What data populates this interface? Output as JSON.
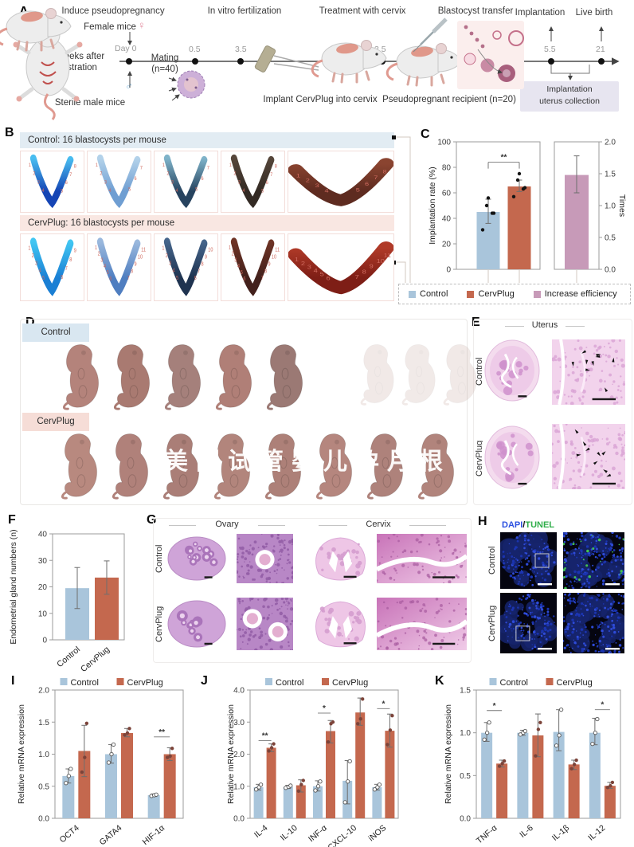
{
  "panelA": {
    "label": "A",
    "stages": {
      "s1": "Induce pseudopregnancy",
      "s2": "In vitro fertilization",
      "s3": "Treatment with cervix",
      "s4": "Blastocyst transfer",
      "s5": "Implantation",
      "s6": "Live birth"
    },
    "ticks": {
      "day0": "Day 0",
      "t05": "0.5",
      "t35a": "3.5",
      "t35b": "3.5",
      "t55": "5.5",
      "t21": "21"
    },
    "female_mice": "Female mice",
    "female_symbol": "♀",
    "male_symbol": "♂",
    "castration_l1": "2 weeks after",
    "castration_l2": "castration",
    "mating_l1": "Mating",
    "mating_l2": "(n=40)",
    "sterile_male": "Sterile male mice",
    "implant_caption": "Implant CervPlug into cervix",
    "recipient_caption": "Pseudopregnant recipient (n=20)",
    "collection_l1": "Implantation",
    "collection_l2": "uterus collection"
  },
  "panelB": {
    "label": "B",
    "control_header": "Control: 16 blastocysts per mouse",
    "cervplug_header": "CervPlug: 16 blastocysts per mouse",
    "control_tiles": [
      {
        "c1": "#1545b5",
        "c2": "#49bdf0",
        "sites": 8
      },
      {
        "c1": "#6f9ed2",
        "c2": "#b3d2ea",
        "sites": 7
      },
      {
        "c1": "#27435f",
        "c2": "#7fb3c9",
        "sites": 7
      },
      {
        "c1": "#332a24",
        "c2": "#55463a",
        "sites": 8
      },
      {
        "c1": "#5e2b20",
        "c2": "#8a4430",
        "sites": 8,
        "wide": true
      }
    ],
    "cervplug_tiles": [
      {
        "c1": "#1a7fd4",
        "c2": "#41c6f2",
        "sites": 9
      },
      {
        "c1": "#4f7ec0",
        "c2": "#9ab8dd",
        "sites": 11
      },
      {
        "c1": "#1f3350",
        "c2": "#45648a",
        "sites": 10
      },
      {
        "c1": "#43211c",
        "c2": "#6e3325",
        "sites": 11
      },
      {
        "c1": "#7e1e16",
        "c2": "#b03a28",
        "sites": 11,
        "wide": true
      }
    ]
  },
  "panelC": {
    "label": "C",
    "legend": [
      {
        "label": "Control",
        "color": "#a9c5db"
      },
      {
        "label": "CervPlug",
        "color": "#c4684e"
      },
      {
        "label": "Increase efficiency",
        "color": "#c79ab8"
      }
    ]
  },
  "panelD": {
    "label": "D",
    "control_chip": "Control",
    "cervplug_chip": "CervPlug",
    "watermark": "美国试管婴儿孕月根",
    "control_pups": [
      {
        "color": "#b4837b"
      },
      {
        "color": "#a97a71"
      },
      {
        "color": "#a5807b"
      },
      {
        "color": "#b07f77"
      },
      {
        "color": "#9b7974"
      },
      {
        "color": "#c9aba3",
        "ghost": true
      },
      {
        "color": "#cbada5",
        "ghost": true
      },
      {
        "color": "#c8a9a1",
        "ghost": true
      }
    ],
    "cervplug_pups": [
      {
        "color": "#b8897f"
      },
      {
        "color": "#b0817a"
      },
      {
        "color": "#aa7e77"
      },
      {
        "color": "#b2857c"
      },
      {
        "color": "#ad8078"
      },
      {
        "color": "#b5867e"
      },
      {
        "color": "#ae827b"
      },
      {
        "color": "#b1847c"
      }
    ]
  },
  "panelE": {
    "label": "E",
    "title": "Uterus",
    "rows": [
      "Control",
      "CervPlug"
    ]
  },
  "panelF": {
    "label": "F"
  },
  "panelG": {
    "label": "G",
    "col1": "Ovary",
    "col2": "Cervix",
    "rows": [
      "Control",
      "CervPlug"
    ]
  },
  "panelH": {
    "label": "H",
    "stain1": "DAPI",
    "sep": "/",
    "stain2": "TUNEL",
    "stain1_color": "#2b50e0",
    "stain2_color": "#2fae4a",
    "rows": [
      "Control",
      "CervPlug"
    ]
  },
  "panelI": {
    "label": "I"
  },
  "panelJ": {
    "label": "J"
  },
  "panelK": {
    "label": "K"
  },
  "chart_data": [
    {
      "id": "c-left",
      "type": "bar",
      "ylabel": "Implantation rate (%)",
      "ylim": [
        0,
        100
      ],
      "yticks": [
        "0",
        "20",
        "40",
        "60",
        "80",
        "100"
      ],
      "categories": [
        "Control",
        "CervPlug"
      ],
      "values": [
        45,
        65
      ],
      "errors": [
        [
          36,
          55
        ],
        [
          61,
          70
        ]
      ],
      "points": [
        [
          31,
          44,
          44,
          50,
          56
        ],
        [
          57,
          63,
          64,
          70,
          75
        ]
      ],
      "colors": [
        "#a9c5db",
        "#c4684e"
      ],
      "sig": [
        {
          "from": 0,
          "to": 1,
          "y": 84,
          "label": "**",
          "bracket": true
        }
      ],
      "show_xlabels": false
    },
    {
      "id": "c-right",
      "type": "bar",
      "ylabel": "Times",
      "axis_side": "right",
      "ylim": [
        0,
        2
      ],
      "yticks": [
        "0.0",
        "0.5",
        "1.0",
        "1.5",
        "2.0"
      ],
      "categories": [
        "Increase efficiency"
      ],
      "values": [
        1.48
      ],
      "errors": [
        [
          1.2,
          1.78
        ]
      ],
      "colors": [
        "#c79ab8"
      ],
      "show_xlabels": false
    },
    {
      "id": "f",
      "type": "bar",
      "ylabel": "Endometrial gland numbers (n)",
      "ylim": [
        0,
        40
      ],
      "yticks": [
        "0",
        "10",
        "20",
        "30",
        "40"
      ],
      "categories": [
        "Control",
        "CervPlug"
      ],
      "values": [
        19.5,
        23.5
      ],
      "errors": [
        [
          11.8,
          27.3
        ],
        [
          17.2,
          29.8
        ]
      ],
      "colors": [
        "#a9c5db",
        "#c4684e"
      ],
      "show_xlabels": true
    },
    {
      "id": "i",
      "type": "bar",
      "ylabel": "Relative mRNA expression",
      "ylim": [
        0,
        2
      ],
      "yticks": [
        "0.0",
        "0.5",
        "1.0",
        "1.5",
        "2.0"
      ],
      "categories": [
        "OCT4",
        "GATA4",
        "HIF-1α"
      ],
      "legend": [
        "Control",
        "CervPlug"
      ],
      "legend_colors": [
        "#a9c5db",
        "#c4684e"
      ],
      "series": [
        {
          "name": "Control",
          "color": "#a9c5db",
          "values": [
            0.66,
            1.0,
            0.36
          ],
          "errors": [
            [
              0.55,
              0.77
            ],
            [
              0.86,
              1.15
            ],
            [
              0.34,
              0.38
            ]
          ],
          "points": [
            [
              0.55,
              0.66,
              0.77
            ],
            [
              0.87,
              1.0,
              1.15
            ],
            [
              0.35,
              0.36,
              0.37
            ]
          ]
        },
        {
          "name": "CervPlug",
          "color": "#c4684e",
          "values": [
            1.05,
            1.33,
            1.0
          ],
          "errors": [
            [
              0.65,
              1.45
            ],
            [
              1.27,
              1.4
            ],
            [
              0.9,
              1.1
            ]
          ],
          "points": [
            [
              0.72,
              0.95,
              1.48
            ],
            [
              1.3,
              1.33,
              1.4
            ],
            [
              0.95,
              0.97,
              1.09
            ]
          ]
        }
      ],
      "sig": [
        {
          "category": 2,
          "y": 1.27,
          "label": "**"
        }
      ],
      "show_xlabels": true
    },
    {
      "id": "j",
      "type": "bar",
      "ylabel": "Relative mRNA expression",
      "ylim": [
        0,
        4
      ],
      "yticks": [
        "0.0",
        "1.0",
        "2.0",
        "3.0",
        "4.0"
      ],
      "categories": [
        "IL-4",
        "IL-10",
        "INF-α",
        "CXCL-10",
        "iNOS"
      ],
      "legend": [
        "Control",
        "CervPlug"
      ],
      "legend_colors": [
        "#a9c5db",
        "#c4684e"
      ],
      "series": [
        {
          "name": "Control",
          "color": "#a9c5db",
          "values": [
            0.97,
            0.98,
            1.0,
            1.17,
            0.97
          ],
          "errors": [
            [
              0.88,
              1.06
            ],
            [
              0.93,
              1.03
            ],
            [
              0.85,
              1.17
            ],
            [
              0.45,
              1.8
            ],
            [
              0.88,
              1.06
            ]
          ],
          "points": [
            [
              0.9,
              0.97,
              1.05
            ],
            [
              0.95,
              0.98,
              1.02
            ],
            [
              0.87,
              1.0,
              1.15
            ],
            [
              0.5,
              1.15,
              1.78
            ],
            [
              0.9,
              0.97,
              1.05
            ]
          ]
        },
        {
          "name": "CervPlug",
          "color": "#c4684e",
          "values": [
            2.2,
            1.03,
            2.72,
            3.3,
            2.73
          ],
          "errors": [
            [
              2.08,
              2.32
            ],
            [
              0.82,
              1.2
            ],
            [
              2.35,
              3.05
            ],
            [
              2.9,
              3.75
            ],
            [
              2.22,
              3.25
            ]
          ],
          "points": [
            [
              2.1,
              2.2,
              2.32
            ],
            [
              0.85,
              1.05,
              1.18
            ],
            [
              2.38,
              2.95,
              3.0
            ],
            [
              2.95,
              3.1,
              3.72
            ],
            [
              2.3,
              2.75,
              3.2
            ]
          ]
        }
      ],
      "sig": [
        {
          "category": 0,
          "y": 2.42,
          "label": "**"
        },
        {
          "category": 2,
          "y": 3.28,
          "label": "*"
        },
        {
          "category": 4,
          "y": 3.42,
          "label": "*"
        }
      ],
      "show_xlabels": true
    },
    {
      "id": "k",
      "type": "bar",
      "ylabel": "Relative mRNA expression",
      "ylim": [
        0,
        1.5
      ],
      "yticks": [
        "0.0",
        "0.5",
        "1.0",
        "1.5"
      ],
      "categories": [
        "TNF-α",
        "IL-6",
        "IL-1β",
        "IL-12"
      ],
      "legend": [
        "Control",
        "CervPlug"
      ],
      "legend_colors": [
        "#a9c5db",
        "#c4684e"
      ],
      "series": [
        {
          "name": "Control",
          "color": "#a9c5db",
          "values": [
            1.0,
            1.0,
            1.01,
            1.0
          ],
          "errors": [
            [
              0.9,
              1.12
            ],
            [
              0.97,
              1.03
            ],
            [
              0.79,
              1.27
            ],
            [
              0.86,
              1.17
            ]
          ],
          "points": [
            [
              0.92,
              1.0,
              1.12
            ],
            [
              0.98,
              1.0,
              1.02
            ],
            [
              0.85,
              0.97,
              1.27
            ],
            [
              0.87,
              1.0,
              1.16
            ]
          ]
        },
        {
          "name": "CervPlug",
          "color": "#c4684e",
          "values": [
            0.64,
            0.97,
            0.63,
            0.38
          ],
          "errors": [
            [
              0.6,
              0.68
            ],
            [
              0.72,
              1.22
            ],
            [
              0.57,
              0.68
            ],
            [
              0.35,
              0.42
            ]
          ],
          "points": [
            [
              0.61,
              0.64,
              0.67
            ],
            [
              0.73,
              1.04,
              1.12
            ],
            [
              0.58,
              0.63,
              0.68
            ],
            [
              0.36,
              0.38,
              0.42
            ]
          ]
        }
      ],
      "sig": [
        {
          "category": 0,
          "y": 1.26,
          "label": "*"
        },
        {
          "category": 3,
          "y": 1.27,
          "label": "*"
        }
      ],
      "show_xlabels": true
    }
  ]
}
